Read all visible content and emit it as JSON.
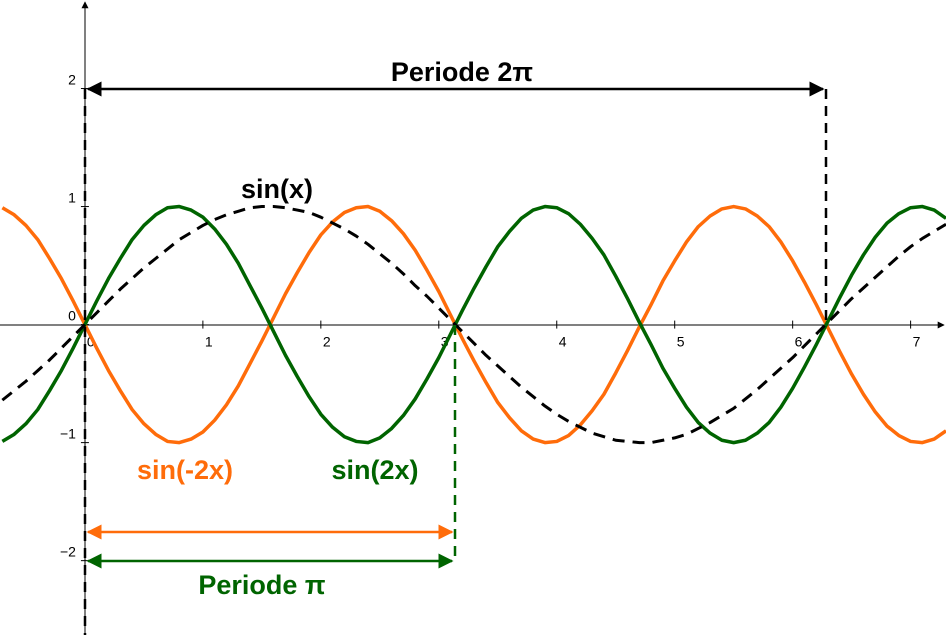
{
  "chart_data": {
    "type": "line",
    "x": [
      -0.7,
      -0.6,
      -0.5,
      -0.4,
      -0.3,
      -0.2,
      -0.1,
      0,
      0.1,
      0.2,
      0.3,
      0.4,
      0.5,
      0.6,
      0.7,
      0.8,
      0.9,
      1,
      1.1,
      1.2,
      1.3,
      1.4,
      1.5,
      1.6,
      1.7,
      1.8,
      1.9,
      2,
      2.1,
      2.2,
      2.3,
      2.4,
      2.5,
      2.6,
      2.7,
      2.8,
      2.9,
      3,
      3.1,
      3.2,
      3.3,
      3.4,
      3.5,
      3.6,
      3.7,
      3.8,
      3.9,
      4,
      4.1,
      4.2,
      4.3,
      4.4,
      4.5,
      4.6,
      4.7,
      4.8,
      4.9,
      5,
      5.1,
      5.2,
      5.3,
      5.4,
      5.5,
      5.6,
      5.7,
      5.8,
      5.9,
      6,
      6.1,
      6.2,
      6.3,
      6.4,
      6.5,
      6.6,
      6.7,
      6.8,
      6.9,
      7,
      7.1,
      7.2,
      7.3
    ],
    "series": [
      {
        "name": "sin(-2x)",
        "color": "#ff6c0a",
        "values": [
          0.99,
          0.93,
          0.84,
          0.72,
          0.56,
          0.39,
          0.2,
          0,
          -0.2,
          -0.39,
          -0.56,
          -0.72,
          -0.84,
          -0.93,
          -0.99,
          -1,
          -0.97,
          -0.91,
          -0.81,
          -0.68,
          -0.52,
          -0.33,
          -0.14,
          0.06,
          0.26,
          0.44,
          0.61,
          0.76,
          0.87,
          0.95,
          0.99,
          1,
          0.96,
          0.88,
          0.77,
          0.63,
          0.46,
          0.28,
          0.08,
          -0.12,
          -0.31,
          -0.49,
          -0.66,
          -0.79,
          -0.9,
          -0.97,
          -1,
          -0.99,
          -0.94,
          -0.85,
          -0.73,
          -0.59,
          -0.41,
          -0.22,
          -0.02,
          0.17,
          0.37,
          0.54,
          0.7,
          0.83,
          0.92,
          0.98,
          1,
          0.98,
          0.92,
          0.83,
          0.7,
          0.54,
          0.36,
          0.17,
          -0.03,
          -0.23,
          -0.42,
          -0.59,
          -0.74,
          -0.86,
          -0.94,
          -0.99,
          -1,
          -0.97,
          -0.9
        ]
      },
      {
        "name": "sin(2x)",
        "color": "#006400",
        "values": [
          -0.99,
          -0.93,
          -0.84,
          -0.72,
          -0.56,
          -0.39,
          -0.2,
          0,
          0.2,
          0.39,
          0.56,
          0.72,
          0.84,
          0.93,
          0.99,
          1,
          0.97,
          0.91,
          0.81,
          0.68,
          0.52,
          0.33,
          0.14,
          -0.06,
          -0.26,
          -0.44,
          -0.61,
          -0.76,
          -0.87,
          -0.95,
          -0.99,
          -1,
          -0.96,
          -0.88,
          -0.77,
          -0.63,
          -0.46,
          -0.28,
          -0.08,
          0.12,
          0.31,
          0.49,
          0.66,
          0.79,
          0.9,
          0.97,
          1,
          0.99,
          0.94,
          0.85,
          0.73,
          0.59,
          0.41,
          0.22,
          0.02,
          -0.17,
          -0.37,
          -0.54,
          -0.7,
          -0.83,
          -0.92,
          -0.98,
          -1,
          -0.98,
          -0.92,
          -0.83,
          -0.7,
          -0.54,
          -0.36,
          -0.17,
          0.03,
          0.23,
          0.42,
          0.59,
          0.74,
          0.86,
          0.94,
          0.99,
          1,
          0.97,
          0.9
        ]
      },
      {
        "name": "sin(x)",
        "color": "#000000",
        "dashed": true,
        "values": [
          -0.64,
          -0.56,
          -0.48,
          -0.39,
          -0.3,
          -0.2,
          -0.1,
          0,
          0.1,
          0.2,
          0.3,
          0.39,
          0.48,
          0.56,
          0.64,
          0.72,
          0.78,
          0.84,
          0.89,
          0.93,
          0.96,
          0.99,
          1,
          1,
          0.99,
          0.97,
          0.95,
          0.91,
          0.86,
          0.81,
          0.75,
          0.68,
          0.6,
          0.52,
          0.43,
          0.33,
          0.24,
          0.14,
          0.04,
          -0.06,
          -0.16,
          -0.26,
          -0.35,
          -0.44,
          -0.53,
          -0.61,
          -0.69,
          -0.76,
          -0.82,
          -0.87,
          -0.92,
          -0.95,
          -0.98,
          -0.99,
          -1,
          -1,
          -0.98,
          -0.96,
          -0.93,
          -0.88,
          -0.83,
          -0.77,
          -0.71,
          -0.63,
          -0.55,
          -0.46,
          -0.37,
          -0.28,
          -0.18,
          -0.08,
          0.02,
          0.12,
          0.22,
          0.31,
          0.4,
          0.49,
          0.58,
          0.66,
          0.73,
          0.79,
          0.85
        ]
      }
    ],
    "xlim": [
      -0.72,
      7.3
    ],
    "ylim": [
      -2.63,
      2.75
    ],
    "xticks": [
      0,
      1,
      2,
      3,
      4,
      5,
      6,
      7
    ],
    "yticks": [
      {
        "value": -2,
        "label": "−2"
      },
      {
        "value": -1,
        "label": "−1"
      },
      0,
      1,
      2
    ],
    "annotations": [
      "Periode 2π",
      "Periode π"
    ]
  }
}
